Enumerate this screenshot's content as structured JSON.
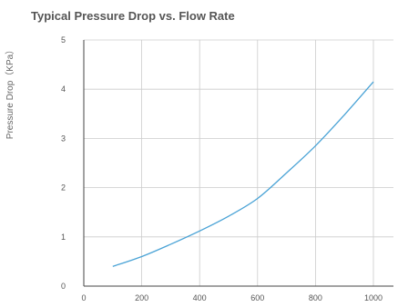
{
  "chart_data": {
    "type": "line",
    "title": "Typical Pressure Drop vs. Flow Rate",
    "xlabel": "",
    "ylabel": "Pressure Drop（KPa）",
    "xlim": [
      0,
      1000
    ],
    "ylim": [
      0,
      5
    ],
    "x_ticks": [
      0,
      200,
      400,
      600,
      800,
      1000
    ],
    "y_ticks": [
      0,
      1,
      2,
      3,
      4,
      5
    ],
    "grid": true,
    "series": [
      {
        "color": "#4aa3d6",
        "x": [
          100,
          200,
          300,
          400,
          500,
          600,
          700,
          800,
          900,
          1000
        ],
        "y": [
          0.4,
          0.6,
          0.85,
          1.12,
          1.42,
          1.78,
          2.3,
          2.85,
          3.48,
          4.15
        ]
      }
    ]
  }
}
